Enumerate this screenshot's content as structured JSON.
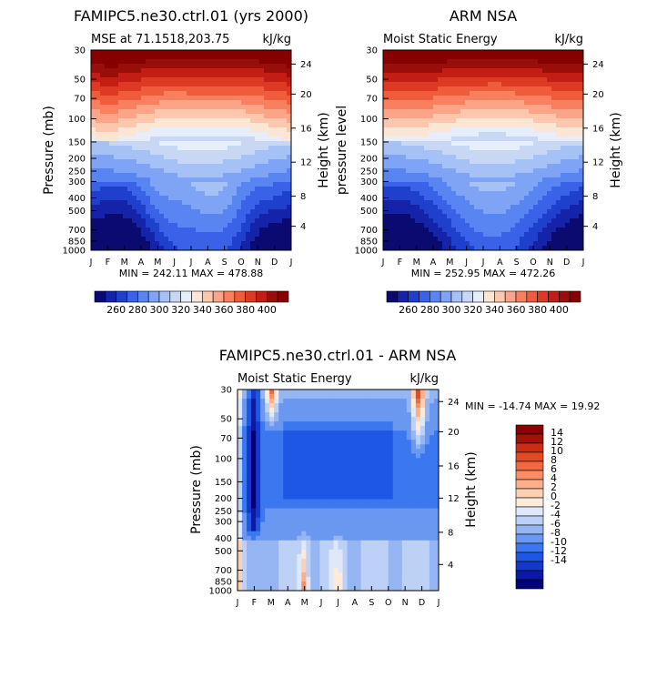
{
  "colors": {
    "abs_palette": [
      "#0a0a70",
      "#1523a8",
      "#1f3fcd",
      "#3a62e8",
      "#5985f2",
      "#7fa4f6",
      "#a6c1f5",
      "#c8d8f4",
      "#e6eefb",
      "#fbe6d6",
      "#fcc7ad",
      "#fba487",
      "#f8805f",
      "#ef5b3b",
      "#de3923",
      "#c41e14",
      "#9a0e0a",
      "#870000"
    ],
    "diff_palette": [
      "#00007a",
      "#0b1aa3",
      "#1338cc",
      "#1e56e6",
      "#3b78ef",
      "#6a98f1",
      "#95b5f3",
      "#bdd0f5",
      "#dfe8f8",
      "#fdebd9",
      "#fcd0b3",
      "#fbb08b",
      "#f88d66",
      "#ef6942",
      "#e24a26",
      "#cc2d12",
      "#a01303",
      "#8a0000"
    ]
  },
  "chart_data": [
    {
      "id": "model",
      "type": "heatmap",
      "title": "FAMIPC5.ne30.ctrl.01 (yrs 2000)",
      "subtitle_left": "MSE at 71.1518,203.75",
      "subtitle_right": "kJ/kg",
      "xlabel": "",
      "ylabel": "Pressure (mb)",
      "y2label": "Height (km)",
      "x_ticks": [
        "J",
        "F",
        "M",
        "A",
        "M",
        "J",
        "J",
        "A",
        "S",
        "O",
        "N",
        "D",
        "J"
      ],
      "y_ticks": [
        30,
        50,
        70,
        100,
        150,
        200,
        250,
        300,
        400,
        500,
        700,
        850,
        1000
      ],
      "y2_ticks": [
        24,
        20,
        16,
        12,
        8,
        4
      ],
      "stats": "MIN = 242.11  MAX = 478.88",
      "colorbar_labels": [
        "260",
        "280",
        "300",
        "320",
        "340",
        "360",
        "380",
        "400"
      ],
      "colorbar_levels": [
        250,
        260,
        270,
        280,
        290,
        300,
        310,
        320,
        330,
        340,
        350,
        360,
        370,
        380,
        390,
        400,
        410
      ]
    },
    {
      "id": "obs",
      "type": "heatmap",
      "title": "ARM NSA",
      "subtitle_left": "Moist Static Energy",
      "subtitle_right": "kJ/kg",
      "xlabel": "",
      "ylabel": "pressure level",
      "y2label": "Height (km)",
      "x_ticks": [
        "J",
        "F",
        "M",
        "A",
        "M",
        "J",
        "J",
        "A",
        "S",
        "O",
        "N",
        "D",
        "J"
      ],
      "y_ticks": [
        30,
        50,
        70,
        100,
        150,
        200,
        250,
        300,
        400,
        500,
        700,
        850,
        1000
      ],
      "y2_ticks": [
        24,
        20,
        16,
        12,
        8,
        4
      ],
      "stats": "MIN = 252.95  MAX = 472.26",
      "colorbar_labels": [
        "260",
        "280",
        "300",
        "320",
        "340",
        "360",
        "380",
        "400"
      ],
      "colorbar_levels": [
        250,
        260,
        270,
        280,
        290,
        300,
        310,
        320,
        330,
        340,
        350,
        360,
        370,
        380,
        390,
        400,
        410
      ]
    },
    {
      "id": "diff",
      "type": "heatmap",
      "title": "FAMIPC5.ne30.ctrl.01 - ARM NSA",
      "subtitle_left": "Moist Static Energy",
      "subtitle_right": "kJ/kg",
      "xlabel": "",
      "ylabel": "Pressure (mb)",
      "y2label": "Height (km)",
      "x_ticks": [
        "J",
        "F",
        "M",
        "A",
        "M",
        "J",
        "J",
        "A",
        "S",
        "O",
        "N",
        "D",
        "J"
      ],
      "y_ticks": [
        30,
        50,
        70,
        100,
        150,
        200,
        250,
        300,
        400,
        500,
        700,
        850,
        1000
      ],
      "y2_ticks": [
        24,
        20,
        16,
        12,
        8,
        4
      ],
      "stats": "MIN = -14.74 MAX =  19.92",
      "colorbar_labels": [
        "14",
        "12",
        "10",
        "8",
        "6",
        "4",
        "2",
        "0",
        "-2",
        "-4",
        "-6",
        "-8",
        "-10",
        "-12",
        "-14"
      ],
      "colorbar_levels": [
        -16,
        -14,
        -12,
        -10,
        -8,
        -6,
        -4,
        -2,
        0,
        2,
        4,
        6,
        8,
        10,
        12,
        14,
        16
      ]
    }
  ]
}
